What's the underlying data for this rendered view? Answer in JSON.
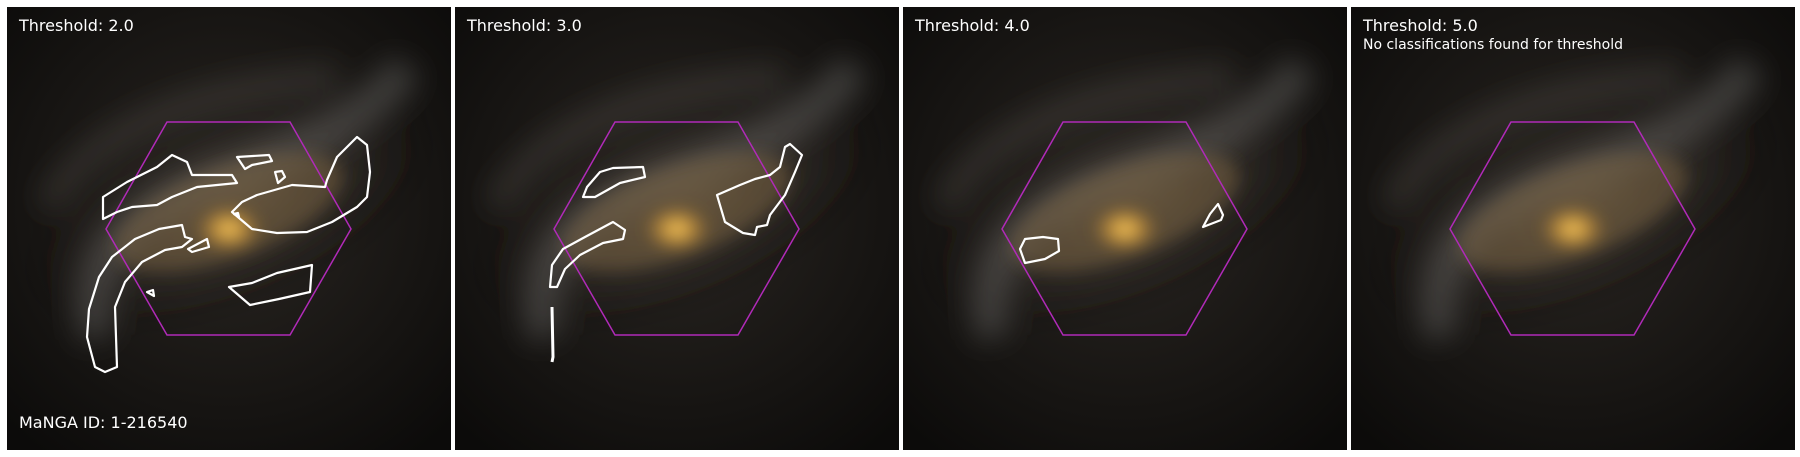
{
  "panels": [
    {
      "title": "Threshold: 2.0",
      "note": "",
      "footer": "MaNGA ID: 1-216540"
    },
    {
      "title": "Threshold: 3.0",
      "note": "",
      "footer": ""
    },
    {
      "title": "Threshold: 4.0",
      "note": "",
      "footer": ""
    },
    {
      "title": "Threshold: 5.0",
      "note": "No classifications found for threshold",
      "footer": ""
    }
  ],
  "colors": {
    "hexagon": "#b02ab8",
    "contour": "#ffffff",
    "core": "#ffd066"
  }
}
